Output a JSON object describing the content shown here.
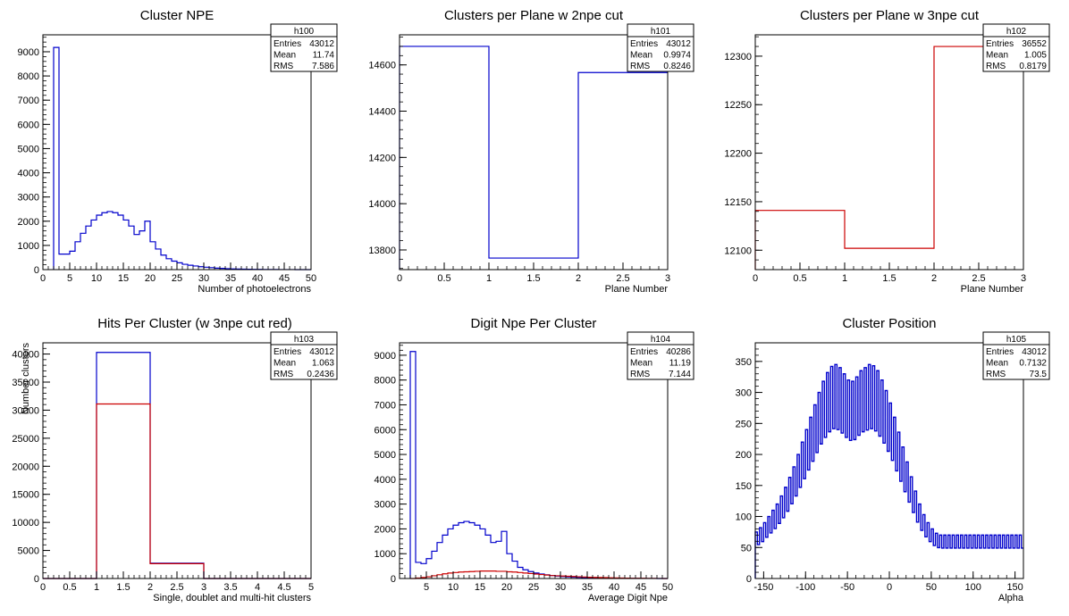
{
  "chart_data": [
    {
      "type": "histogram",
      "title": "Cluster NPE",
      "xlabel": "Number of photoelectrons",
      "ylabel": "",
      "xlim": [
        0,
        50
      ],
      "ylim": [
        0,
        9700
      ],
      "xticks": [
        0,
        5,
        10,
        15,
        20,
        25,
        30,
        35,
        40,
        45,
        50
      ],
      "yticks": [
        0,
        1000,
        2000,
        3000,
        4000,
        5000,
        6000,
        7000,
        8000,
        9000
      ],
      "stats": {
        "name": "h100",
        "entries": "43012",
        "mean": "11.74",
        "rms": "7.586"
      },
      "series": [
        {
          "color": "#0000cc",
          "bin_width": 1,
          "x_start": 2,
          "values": [
            9180,
            640,
            640,
            760,
            1150,
            1500,
            1800,
            2050,
            2250,
            2350,
            2400,
            2350,
            2250,
            2050,
            1800,
            1450,
            1600,
            2000,
            1150,
            850,
            600,
            450,
            350,
            280,
            220,
            180,
            150,
            120,
            100,
            80,
            60,
            50,
            40,
            30,
            25,
            20,
            15,
            10,
            8,
            6,
            5,
            4,
            3,
            2,
            2,
            1,
            1,
            0
          ]
        }
      ]
    },
    {
      "type": "histogram",
      "title": "Clusters per Plane w 2npe cut",
      "xlabel": "Plane Number",
      "ylabel": "",
      "xlim": [
        0,
        3
      ],
      "ylim": [
        13715,
        14730
      ],
      "xticks": [
        0,
        0.5,
        1,
        1.5,
        2,
        2.5,
        3
      ],
      "yticks": [
        13800,
        14000,
        14200,
        14400,
        14600
      ],
      "stats": {
        "name": "h101",
        "entries": "43012",
        "mean": "0.9974",
        "rms": "0.8246"
      },
      "series": [
        {
          "color": "#0000cc",
          "bin_width": 1,
          "x_start": 0,
          "values": [
            14680,
            13765,
            14567
          ]
        }
      ]
    },
    {
      "type": "histogram",
      "title": "Clusters per Plane w 3npe cut",
      "xlabel": "Plane Number",
      "ylabel": "",
      "xlim": [
        0,
        3
      ],
      "ylim": [
        12080,
        12322
      ],
      "xticks": [
        0,
        0.5,
        1,
        1.5,
        2,
        2.5,
        3
      ],
      "yticks": [
        12100,
        12150,
        12200,
        12250,
        12300
      ],
      "stats": {
        "name": "h102",
        "entries": "36552",
        "mean": "1.005",
        "rms": "0.8179"
      },
      "series": [
        {
          "color": "#cc0000",
          "bin_width": 1,
          "x_start": 0,
          "values": [
            12141,
            12102,
            12310
          ]
        }
      ]
    },
    {
      "type": "histogram",
      "title": "Hits Per Cluster (w 3npe cut red)",
      "xlabel": "Single, doublet and multi-hit clusters",
      "ylabel": "Number clusters",
      "xlim": [
        0,
        5
      ],
      "ylim": [
        0,
        42000
      ],
      "xticks": [
        0,
        0.5,
        1,
        1.5,
        2,
        2.5,
        3,
        3.5,
        4,
        4.5,
        5
      ],
      "yticks": [
        0,
        5000,
        10000,
        15000,
        20000,
        25000,
        30000,
        35000,
        40000
      ],
      "stats": {
        "name": "h103",
        "entries": "43012",
        "mean": "1.063",
        "rms": "0.2436"
      },
      "series": [
        {
          "color": "#0000cc",
          "bin_width": 1,
          "x_start": 0,
          "values": [
            0,
            40286,
            2726,
            0,
            0
          ]
        },
        {
          "color": "#cc0000",
          "bin_width": 1,
          "x_start": 0,
          "values": [
            0,
            31100,
            2650,
            0,
            0
          ]
        }
      ]
    },
    {
      "type": "histogram",
      "title": "Digit Npe Per Cluster",
      "xlabel": "Average Digit Npe",
      "ylabel": "",
      "xlim": [
        0,
        50
      ],
      "ylim": [
        0,
        9500
      ],
      "xticks": [
        5,
        10,
        15,
        20,
        25,
        30,
        35,
        40,
        45,
        50
      ],
      "yticks": [
        0,
        1000,
        2000,
        3000,
        4000,
        5000,
        6000,
        7000,
        8000,
        9000
      ],
      "stats": {
        "name": "h104",
        "entries": "40286",
        "mean": "11.19",
        "rms": "7.144"
      },
      "series": [
        {
          "color": "#0000cc",
          "bin_width": 1,
          "x_start": 2,
          "values": [
            9150,
            650,
            600,
            800,
            1100,
            1450,
            1750,
            2000,
            2150,
            2250,
            2300,
            2250,
            2150,
            2000,
            1750,
            1450,
            1500,
            1900,
            1000,
            700,
            450,
            350,
            280,
            220,
            180,
            150,
            120,
            100,
            80,
            65,
            55,
            45,
            35,
            30,
            25,
            20,
            15,
            12,
            10,
            8,
            6,
            5,
            4,
            3,
            2,
            2,
            1,
            1
          ]
        },
        {
          "color": "#cc0000",
          "bin_width": 1,
          "x_start": 2,
          "values": [
            0,
            20,
            40,
            70,
            110,
            150,
            190,
            220,
            240,
            260,
            270,
            280,
            290,
            300,
            300,
            300,
            290,
            290,
            270,
            260,
            240,
            220,
            200,
            180,
            160,
            140,
            120,
            110,
            100,
            90,
            80,
            70,
            60,
            50,
            45,
            40,
            35,
            30,
            25,
            20,
            15,
            12,
            10,
            8,
            6,
            4,
            2,
            1
          ]
        }
      ]
    },
    {
      "type": "histogram",
      "title": "Cluster Position",
      "xlabel": "Alpha",
      "ylabel": "",
      "xlim": [
        -160,
        160
      ],
      "ylim": [
        0,
        380
      ],
      "xticks": [
        -150,
        -100,
        -50,
        0,
        50,
        100,
        150
      ],
      "yticks": [
        0,
        50,
        100,
        150,
        200,
        250,
        300,
        350
      ],
      "stats": {
        "name": "h105",
        "entries": "43012",
        "mean": "0.7132",
        "rms": "73.5"
      },
      "series": [
        {
          "color": "#0000cc",
          "bin_width": 2.5,
          "x_start": -160,
          "oscillate": 0.7,
          "values": [
            75,
            78,
            82,
            85,
            90,
            95,
            100,
            105,
            110,
            115,
            120,
            127,
            133,
            140,
            147,
            155,
            163,
            172,
            180,
            190,
            200,
            210,
            220,
            230,
            240,
            250,
            260,
            270,
            280,
            290,
            300,
            310,
            318,
            325,
            332,
            338,
            342,
            345,
            345,
            343,
            340,
            335,
            330,
            325,
            320,
            318,
            318,
            320,
            325,
            330,
            335,
            338,
            340,
            342,
            345,
            345,
            343,
            340,
            335,
            328,
            320,
            312,
            303,
            293,
            283,
            272,
            260,
            248,
            236,
            224,
            212,
            200,
            188,
            176,
            164,
            152,
            141,
            130,
            120,
            111,
            103,
            96,
            90,
            85,
            80,
            76,
            73,
            71,
            70,
            70,
            70,
            70,
            70,
            70,
            70,
            70,
            70,
            70,
            70,
            70,
            70,
            70,
            70,
            70,
            70,
            70,
            70,
            70,
            70,
            70,
            70,
            70,
            70,
            70,
            70,
            70,
            70,
            70,
            70,
            70,
            70,
            70,
            70,
            70,
            70,
            70,
            70,
            70
          ]
        }
      ]
    }
  ]
}
